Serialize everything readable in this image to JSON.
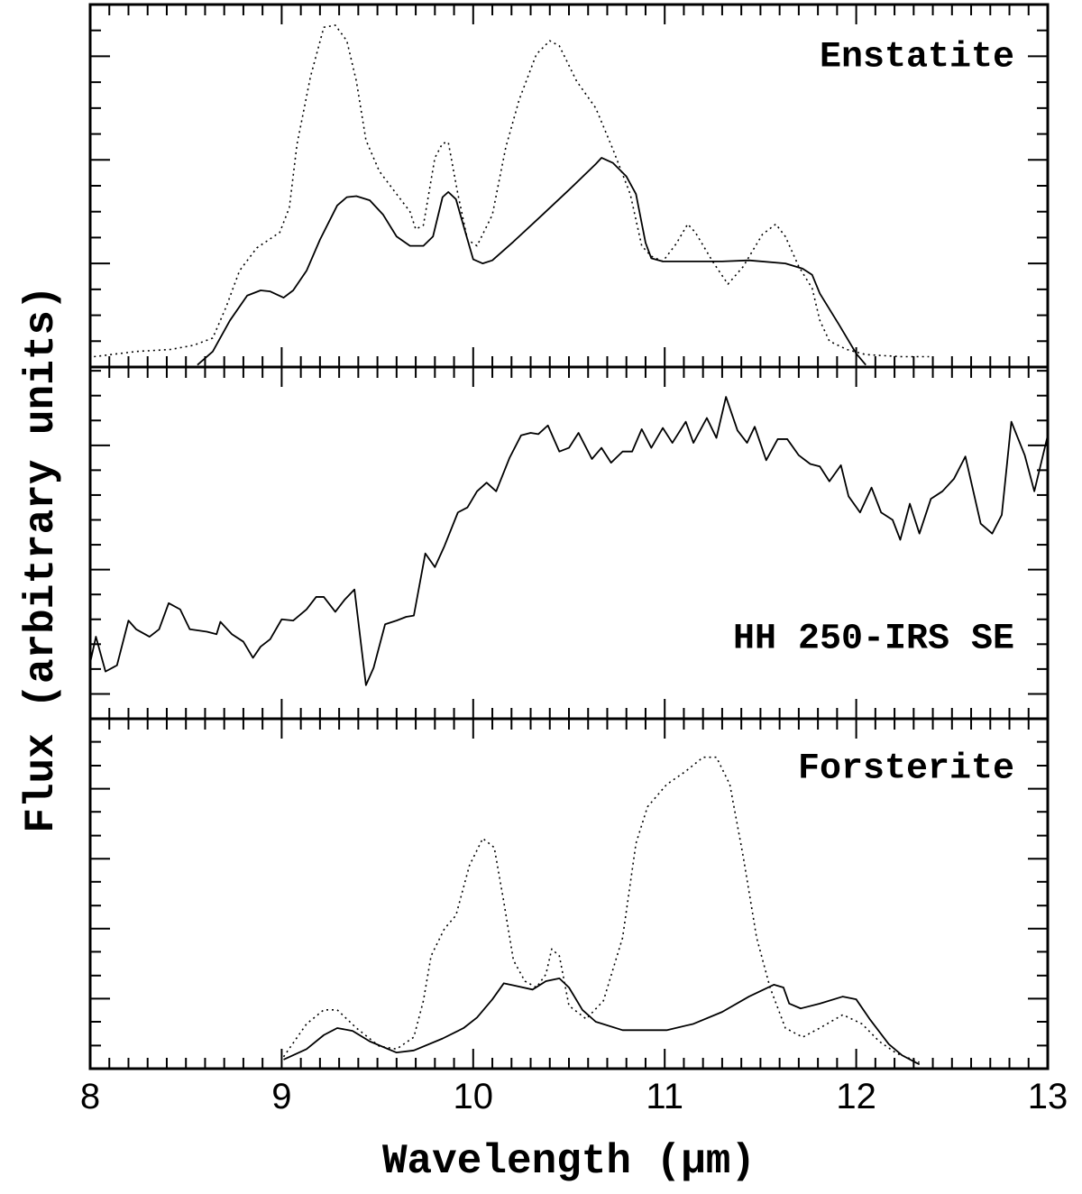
{
  "chart_data": [
    {
      "type": "line",
      "label": "Enstatite",
      "xlim": [
        8,
        13
      ],
      "xticks": [
        8,
        9,
        10,
        11,
        12,
        13
      ],
      "xminor_ticks": [
        8.1,
        8.2,
        8.3,
        8.4,
        8.5,
        8.6,
        8.7,
        8.8,
        8.9,
        9.1,
        9.2,
        9.3,
        9.4,
        9.5,
        9.6,
        9.7,
        9.8,
        9.9,
        10.1,
        10.2,
        10.3,
        10.4,
        10.5,
        10.6,
        10.7,
        10.8,
        10.9,
        11.1,
        11.2,
        11.3,
        11.4,
        11.5,
        11.6,
        11.7,
        11.8,
        11.9,
        12.1,
        12.2,
        12.3,
        12.4,
        12.5,
        12.6,
        12.7,
        12.8,
        12.9
      ],
      "ylim": [
        0,
        3.5
      ],
      "yticks": [
        1,
        2,
        3
      ],
      "yminor_ticks": [
        0.25,
        0.5,
        0.75,
        1.25,
        1.5,
        1.75,
        2.25,
        2.5,
        2.75,
        3.25
      ],
      "series": [
        {
          "style": "solid",
          "color": "#000000",
          "x": [
            8.56,
            8.64,
            8.73,
            8.82,
            8.89,
            8.94,
            9.01,
            9.06,
            9.13,
            9.2,
            9.29,
            9.34,
            9.39,
            9.46,
            9.53,
            9.6,
            9.67,
            9.74,
            9.79,
            9.84,
            9.87,
            9.91,
            9.95,
            10.0,
            10.05,
            10.1,
            10.21,
            10.35,
            10.5,
            10.64,
            10.67,
            10.73,
            10.8,
            10.85,
            10.9,
            10.93,
            10.99,
            11.3,
            11.44,
            11.63,
            11.72,
            11.77,
            11.81,
            11.91,
            12.0,
            12.05
          ],
          "values": [
            0.02,
            0.15,
            0.45,
            0.69,
            0.74,
            0.73,
            0.67,
            0.74,
            0.93,
            1.23,
            1.56,
            1.64,
            1.65,
            1.61,
            1.47,
            1.26,
            1.17,
            1.17,
            1.26,
            1.64,
            1.69,
            1.62,
            1.36,
            1.04,
            1.0,
            1.03,
            1.21,
            1.45,
            1.71,
            1.96,
            2.02,
            1.97,
            1.84,
            1.67,
            1.2,
            1.05,
            1.02,
            1.02,
            1.03,
            1.0,
            0.95,
            0.89,
            0.71,
            0.41,
            0.13,
            0.02
          ]
        },
        {
          "style": "dotted",
          "color": "#000000",
          "x": [
            8.02,
            8.24,
            8.42,
            8.54,
            8.64,
            8.71,
            8.78,
            8.87,
            8.99,
            9.04,
            9.08,
            9.15,
            9.22,
            9.28,
            9.34,
            9.39,
            9.44,
            9.51,
            9.6,
            9.67,
            9.7,
            9.74,
            9.8,
            9.84,
            9.87,
            9.92,
            9.97,
            10.02,
            10.1,
            10.17,
            10.24,
            10.33,
            10.4,
            10.45,
            10.54,
            10.64,
            10.73,
            10.82,
            10.88,
            10.93,
            10.99,
            11.06,
            11.12,
            11.16,
            11.25,
            11.33,
            11.41,
            11.51,
            11.58,
            11.63,
            11.7,
            11.77,
            11.81,
            11.86,
            11.95,
            12.05,
            12.24,
            12.38
          ],
          "values": [
            0.1,
            0.15,
            0.17,
            0.21,
            0.28,
            0.58,
            0.93,
            1.15,
            1.3,
            1.54,
            2.15,
            2.8,
            3.28,
            3.3,
            3.15,
            2.76,
            2.19,
            1.89,
            1.67,
            1.5,
            1.33,
            1.37,
            2.02,
            2.16,
            2.17,
            1.67,
            1.23,
            1.17,
            1.47,
            2.12,
            2.58,
            3.02,
            3.15,
            3.1,
            2.76,
            2.5,
            2.1,
            1.67,
            1.17,
            1.07,
            1.02,
            1.19,
            1.38,
            1.3,
            1.02,
            0.8,
            0.97,
            1.28,
            1.38,
            1.26,
            0.97,
            0.76,
            0.45,
            0.25,
            0.17,
            0.12,
            0.1,
            0.1
          ]
        }
      ]
    },
    {
      "type": "line",
      "label": "HH 250-IRS SE",
      "ylabel": "Flux (arbitrary units)",
      "xlim": [
        8,
        13
      ],
      "xticks": [
        8,
        9,
        10,
        11,
        12,
        13
      ],
      "xminor_ticks": [
        8.1,
        8.2,
        8.3,
        8.4,
        8.5,
        8.6,
        8.7,
        8.8,
        8.9,
        9.1,
        9.2,
        9.3,
        9.4,
        9.5,
        9.6,
        9.7,
        9.8,
        9.9,
        10.1,
        10.2,
        10.3,
        10.4,
        10.5,
        10.6,
        10.7,
        10.8,
        10.9,
        11.1,
        11.2,
        11.3,
        11.4,
        11.5,
        11.6,
        11.7,
        11.8,
        11.9,
        12.1,
        12.2,
        12.3,
        12.4,
        12.5,
        12.6,
        12.7,
        12.8,
        12.9
      ],
      "ylim": [
        0.8,
        3.63
      ],
      "yticks": [
        1,
        2,
        3
      ],
      "yminor_ticks": [
        1.2,
        1.4,
        1.6,
        1.8,
        2.2,
        2.4,
        2.6,
        2.8,
        3.2,
        3.4,
        3.6
      ],
      "series": [
        {
          "style": "solid",
          "color": "#000000",
          "x": [
            8.0,
            8.03,
            8.08,
            8.14,
            8.2,
            8.24,
            8.31,
            8.36,
            8.41,
            8.47,
            8.52,
            8.61,
            8.66,
            8.68,
            8.74,
            8.8,
            8.85,
            8.89,
            8.94,
            9.0,
            9.06,
            9.13,
            9.18,
            9.22,
            9.28,
            9.33,
            9.38,
            9.44,
            9.48,
            9.54,
            9.6,
            9.65,
            9.69,
            9.75,
            9.8,
            9.85,
            9.92,
            9.97,
            10.02,
            10.07,
            10.12,
            10.19,
            10.25,
            10.3,
            10.34,
            10.39,
            10.45,
            10.5,
            10.55,
            10.62,
            10.67,
            10.72,
            10.78,
            10.83,
            10.88,
            10.93,
            10.99,
            11.04,
            11.11,
            11.15,
            11.22,
            11.27,
            11.32,
            11.38,
            11.43,
            11.47,
            11.53,
            11.59,
            11.64,
            11.7,
            11.76,
            11.81,
            11.86,
            11.92,
            11.96,
            12.02,
            12.08,
            12.13,
            12.19,
            12.23,
            12.28,
            12.33,
            12.39,
            12.45,
            12.51,
            12.57,
            12.65,
            12.71,
            12.76,
            12.81,
            12.88,
            12.93,
            13.0
          ],
          "values": [
            1.25,
            1.46,
            1.18,
            1.23,
            1.59,
            1.52,
            1.46,
            1.52,
            1.73,
            1.68,
            1.52,
            1.5,
            1.48,
            1.58,
            1.48,
            1.42,
            1.29,
            1.38,
            1.44,
            1.6,
            1.59,
            1.68,
            1.78,
            1.78,
            1.66,
            1.76,
            1.84,
            1.07,
            1.21,
            1.56,
            1.59,
            1.62,
            1.63,
            2.13,
            2.02,
            2.19,
            2.46,
            2.5,
            2.63,
            2.7,
            2.63,
            2.9,
            3.08,
            3.1,
            3.09,
            3.16,
            2.95,
            2.98,
            3.1,
            2.89,
            2.98,
            2.86,
            2.95,
            2.95,
            3.13,
            2.98,
            3.14,
            3.02,
            3.19,
            3.02,
            3.22,
            3.06,
            3.39,
            3.12,
            3.02,
            3.15,
            2.88,
            3.05,
            3.05,
            2.92,
            2.85,
            2.83,
            2.71,
            2.84,
            2.59,
            2.46,
            2.66,
            2.46,
            2.4,
            2.24,
            2.53,
            2.29,
            2.57,
            2.63,
            2.73,
            2.91,
            2.37,
            2.29,
            2.44,
            3.19,
            2.92,
            2.63,
            3.08
          ]
        }
      ]
    },
    {
      "type": "line",
      "label": "Forsterite",
      "xlabel": "Wavelength (μm)",
      "xlim": [
        8,
        13
      ],
      "xticks": [
        8,
        9,
        10,
        11,
        12,
        13
      ],
      "xminor_ticks": [
        8.1,
        8.2,
        8.3,
        8.4,
        8.5,
        8.6,
        8.7,
        8.8,
        8.9,
        9.1,
        9.2,
        9.3,
        9.4,
        9.5,
        9.6,
        9.7,
        9.8,
        9.9,
        10.1,
        10.2,
        10.3,
        10.4,
        10.5,
        10.6,
        10.7,
        10.8,
        10.9,
        11.1,
        11.2,
        11.3,
        11.4,
        11.5,
        11.6,
        11.7,
        11.8,
        11.9,
        12.1,
        12.2,
        12.3,
        12.4,
        12.5,
        12.6,
        12.7,
        12.8,
        12.9
      ],
      "ylim": [
        0,
        5
      ],
      "yticks": [
        1,
        2,
        3,
        4
      ],
      "yminor_ticks": [
        0.33,
        0.67,
        1.33,
        1.67,
        2.33,
        2.67,
        3.33,
        3.67,
        4.33,
        4.67
      ],
      "series": [
        {
          "style": "solid",
          "color": "#000000",
          "x": [
            9.01,
            9.13,
            9.22,
            9.29,
            9.37,
            9.46,
            9.6,
            9.69,
            9.84,
            9.95,
            10.02,
            10.1,
            10.16,
            10.21,
            10.31,
            10.38,
            10.45,
            10.5,
            10.57,
            10.64,
            10.78,
            11.01,
            11.15,
            11.3,
            11.44,
            11.57,
            11.62,
            11.65,
            11.71,
            11.81,
            11.93,
            12.0,
            12.07,
            12.17,
            12.24,
            12.33
          ],
          "values": [
            0.13,
            0.28,
            0.48,
            0.58,
            0.54,
            0.39,
            0.23,
            0.26,
            0.43,
            0.58,
            0.73,
            0.99,
            1.22,
            1.19,
            1.13,
            1.25,
            1.29,
            1.16,
            0.84,
            0.67,
            0.55,
            0.55,
            0.64,
            0.81,
            1.03,
            1.2,
            1.16,
            0.93,
            0.86,
            0.93,
            1.03,
            0.99,
            0.71,
            0.35,
            0.19,
            0.06
          ]
        },
        {
          "style": "dotted",
          "color": "#000000",
          "x": [
            9.01,
            9.13,
            9.22,
            9.29,
            9.39,
            9.51,
            9.6,
            9.69,
            9.74,
            9.78,
            9.85,
            9.91,
            9.98,
            10.05,
            10.11,
            10.16,
            10.21,
            10.27,
            10.33,
            10.38,
            10.41,
            10.45,
            10.5,
            10.59,
            10.68,
            10.78,
            10.85,
            10.91,
            11.01,
            11.11,
            11.2,
            11.27,
            11.34,
            11.41,
            11.48,
            11.55,
            11.63,
            11.72,
            11.81,
            11.93,
            12.03,
            12.12,
            12.21,
            12.33
          ],
          "values": [
            0.17,
            0.64,
            0.84,
            0.84,
            0.58,
            0.32,
            0.28,
            0.45,
            0.97,
            1.61,
            2.0,
            2.19,
            2.9,
            3.29,
            3.16,
            2.38,
            1.55,
            1.25,
            1.16,
            1.35,
            1.71,
            1.61,
            0.9,
            0.71,
            0.97,
            1.87,
            3.22,
            3.74,
            4.06,
            4.25,
            4.45,
            4.45,
            4.06,
            3.03,
            1.87,
            1.16,
            0.58,
            0.45,
            0.58,
            0.77,
            0.64,
            0.39,
            0.22,
            0.09
          ]
        }
      ]
    }
  ]
}
